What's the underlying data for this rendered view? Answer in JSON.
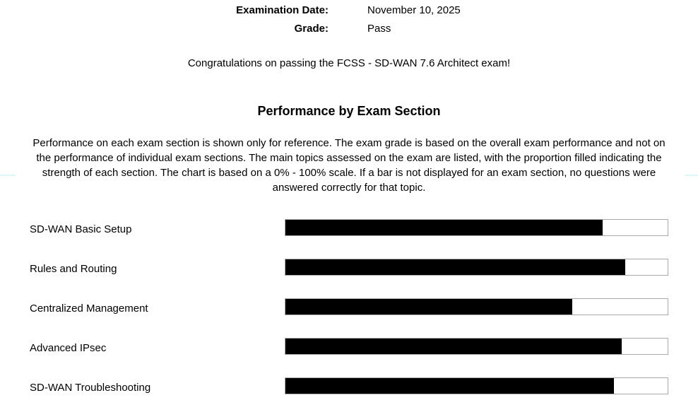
{
  "page": {
    "header": {
      "rows": [
        {
          "label": "Examination Date:",
          "value": "November 10, 2025"
        },
        {
          "label": "Grade:",
          "value": "Pass"
        }
      ]
    },
    "congrats": "Congratulations on passing the FCSS - SD-WAN 7.6 Architect exam!",
    "section_title": "Performance by Exam Section",
    "description": "Performance on each exam section is shown only for reference. The exam grade is based on the overall exam performance and not on the performance of individual exam sections. The main topics assessed on the exam are listed, with the proportion filled indicating the strength of each section. The chart is based on a 0% - 100% scale. If a bar is not displayed for an exam section, no questions were answered correctly for that topic."
  },
  "chart_data": {
    "type": "bar",
    "orientation": "horizontal",
    "title": "Performance by Exam Section",
    "categories": [
      "SD-WAN Basic Setup",
      "Rules and Routing",
      "Centralized Management",
      "Advanced IPsec",
      "SD-WAN Troubleshooting"
    ],
    "values": [
      83,
      89,
      75,
      88,
      86
    ],
    "xlim": [
      0,
      100
    ],
    "unit": "percent",
    "grid": false,
    "legend": false,
    "bar_color": "#000000",
    "track_border_color": "#a9a9a9",
    "track_fill_color": "#ffffff"
  },
  "colors": {
    "text": "#000000",
    "background": "#ffffff",
    "divider": "#dcf7f7"
  }
}
